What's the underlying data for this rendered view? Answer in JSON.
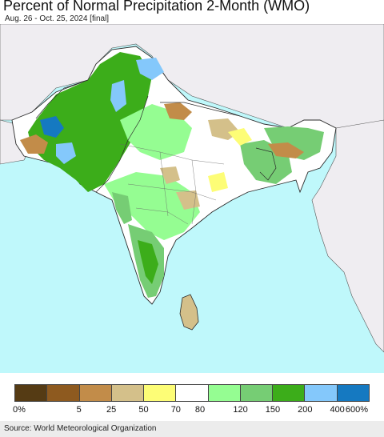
{
  "title": "Percent of Normal Precipitation 2-Month (WMO)",
  "subtitle": "Aug. 26 - Oct. 25, 2024 [final]",
  "map": {
    "region": "South Asia",
    "colors": {
      "ocean": "#bff8fb",
      "outside_land": "#efedf1",
      "land_base": "#ffffff",
      "border": "#2b2b2b"
    }
  },
  "legend": {
    "colors": [
      "#553b14",
      "#8e5a1f",
      "#c28c49",
      "#d4c08a",
      "#fdfd76",
      "#ffffff",
      "#95fd92",
      "#76cd74",
      "#3cad1a",
      "#84c8fb",
      "#1579c1"
    ],
    "ticks": [
      "0%",
      "5",
      "25",
      "50",
      "70",
      "80",
      "120",
      "150",
      "200",
      "400",
      "600%"
    ]
  },
  "source": "Source: World Meteorological Organization"
}
